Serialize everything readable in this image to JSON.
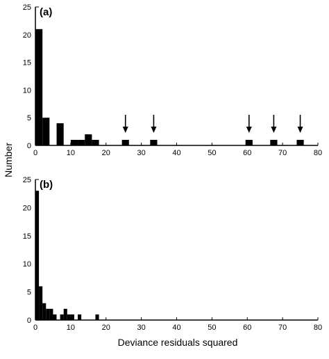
{
  "chart_data": [
    {
      "type": "bar",
      "panel_label": "(a)",
      "x": [
        1,
        3,
        7,
        11,
        13,
        15,
        17,
        25.5,
        33.5,
        60.5,
        67.5,
        75
      ],
      "values": [
        21,
        5,
        4,
        1,
        1,
        2,
        1,
        1,
        1,
        1,
        1,
        1
      ],
      "bin_width": 2,
      "xlim": [
        0,
        80
      ],
      "ylim": [
        0,
        25
      ],
      "xticks": [
        0,
        10,
        20,
        30,
        40,
        50,
        60,
        70,
        80
      ],
      "yticks": [
        0,
        5,
        10,
        15,
        20,
        25
      ],
      "arrows_at": [
        25.5,
        33.5,
        60.5,
        67.5,
        75
      ],
      "color": "#000000"
    },
    {
      "type": "bar",
      "panel_label": "(b)",
      "x": [
        0.5,
        1.5,
        2.5,
        3.5,
        4.5,
        5.5,
        7.5,
        8.5,
        9.5,
        10.5,
        12.5,
        17.5
      ],
      "values": [
        23,
        6,
        3,
        2,
        2,
        1,
        1,
        2,
        1,
        1,
        1,
        1
      ],
      "bin_width": 1,
      "xlim": [
        0,
        80
      ],
      "ylim": [
        0,
        25
      ],
      "xticks": [
        0,
        10,
        20,
        30,
        40,
        50,
        60,
        70,
        80
      ],
      "yticks": [
        0,
        5,
        10,
        15,
        20,
        25
      ],
      "color": "#000000"
    }
  ],
  "axes": {
    "ylabel": "Number",
    "xlabel": "Deviance residuals squared"
  }
}
